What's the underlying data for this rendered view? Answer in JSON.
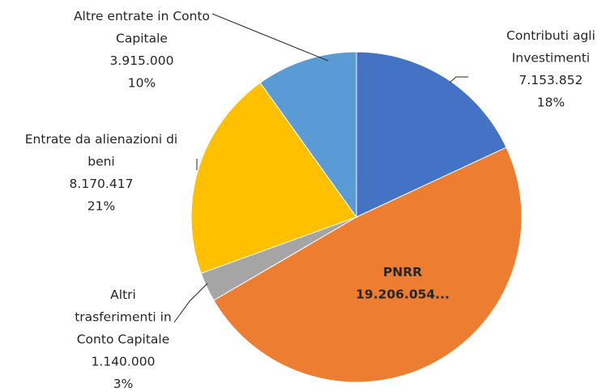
{
  "chart_data": {
    "type": "pie",
    "categories": [
      "Contributi agli Investimenti",
      "PNRR",
      "Altri trasferimenti in Conto Capitale",
      "Entrate da alienazioni di beni",
      "Altre entrate in Conto Capitale"
    ],
    "values": [
      7153852,
      19206054,
      1140000,
      8170417,
      3915000
    ],
    "value_labels": [
      "7.153.852",
      "19.206.054...",
      "1.140.000",
      "8.170.417",
      "3.915.000"
    ],
    "percents": [
      18,
      null,
      3,
      21,
      10
    ],
    "percent_labels": [
      "18%",
      null,
      "3%",
      "21%",
      "10%"
    ],
    "colors": [
      "#4472c4",
      "#ed7d31",
      "#a5a5a5",
      "#ffc000",
      "#5b9bd5"
    ]
  }
}
